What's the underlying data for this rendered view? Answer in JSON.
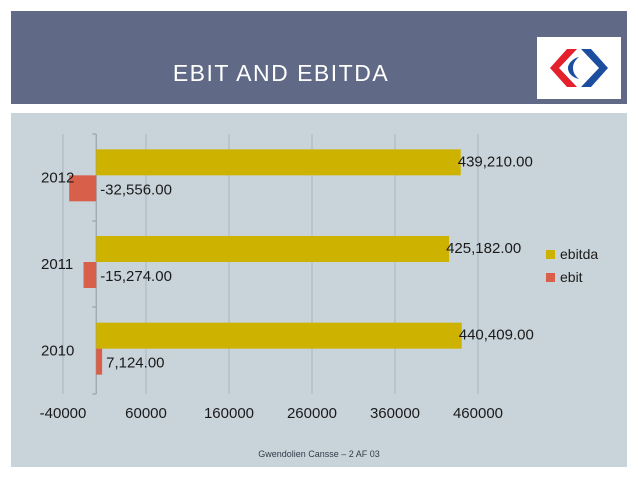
{
  "slide": {
    "title": "EBIT AND EBITDA",
    "footer": "Gwendolien Cansse – 2 AF 03",
    "logo_icon": "carrefour-logo-icon"
  },
  "colors": {
    "title_band": "#606a86",
    "content_bg": "#c9d4da",
    "ebitda": "#cdb300",
    "ebit": "#d8604a",
    "logo_blue": "#1d4d9e",
    "logo_red": "#e3202b"
  },
  "chart_data": {
    "type": "bar",
    "orientation": "horizontal",
    "categories": [
      "2010",
      "2011",
      "2012"
    ],
    "series": [
      {
        "name": "ebitda",
        "values": [
          440409,
          425182,
          439210
        ],
        "labels": [
          "440,409.00",
          "425,182.00",
          "439,210.00"
        ]
      },
      {
        "name": "ebit",
        "values": [
          7124,
          -15274,
          -32556
        ],
        "labels": [
          "7,124.00",
          "-15,274.00",
          "-32,556.00"
        ]
      }
    ],
    "xlim": [
      -40000,
      460000
    ],
    "xticks": [
      -40000,
      60000,
      160000,
      260000,
      360000,
      460000
    ],
    "xtick_labels": [
      "-40000",
      "60000",
      "160000",
      "260000",
      "360000",
      "460000"
    ],
    "legend": [
      "ebitda",
      "ebit"
    ],
    "legend_position": "right",
    "grid": "vertical",
    "title": "",
    "xlabel": "",
    "ylabel": ""
  }
}
